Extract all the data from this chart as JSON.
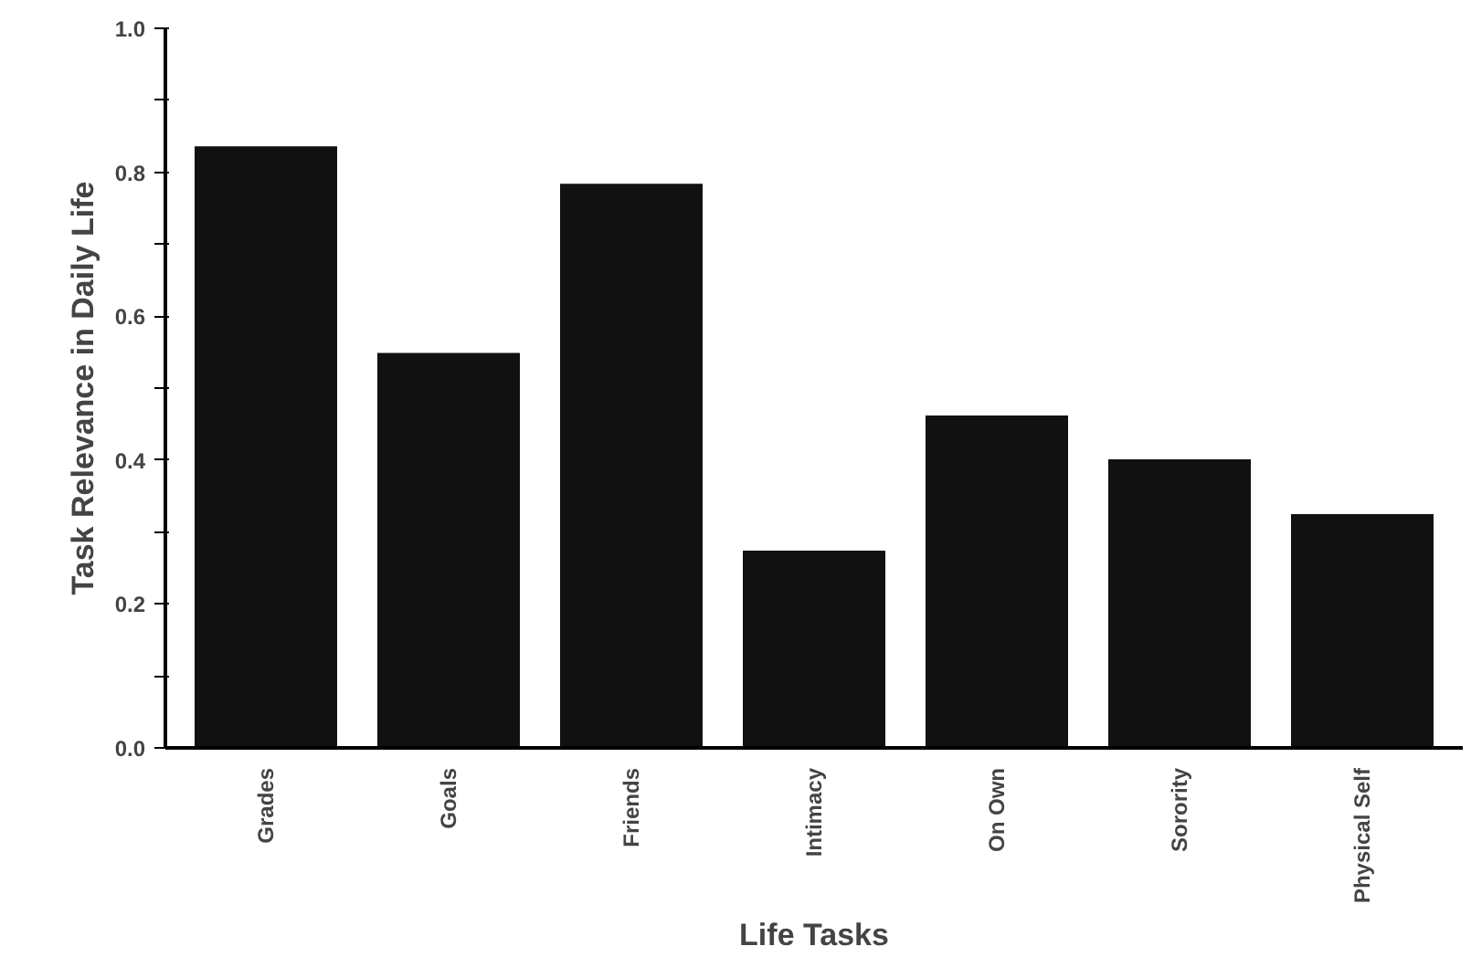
{
  "chart_data": {
    "type": "bar",
    "xlabel": "Life Tasks",
    "ylabel": "Task Relevance in Daily Life",
    "categories": [
      "Grades",
      "Goals",
      "Friends",
      "Intimacy",
      "On Own",
      "Sorority",
      "Physical Self"
    ],
    "values": [
      0.836,
      0.549,
      0.784,
      0.274,
      0.462,
      0.401,
      0.325
    ],
    "color": "#111111",
    "ylim": [
      0,
      1.0
    ],
    "yticks": [
      {
        "value": 0,
        "label": "0.0"
      },
      {
        "value": 0.1,
        "label": null
      },
      {
        "value": 0.2,
        "label": "0.2"
      },
      {
        "value": 0.3,
        "label": null
      },
      {
        "value": 0.4,
        "label": "0.4"
      },
      {
        "value": 0.5,
        "label": null
      },
      {
        "value": 0.6,
        "label": "0.6"
      },
      {
        "value": 0.7,
        "label": null
      },
      {
        "value": 0.8,
        "label": "0.8"
      },
      {
        "value": 0.9,
        "label": null
      },
      {
        "value": 1.0,
        "label": "1.0"
      }
    ],
    "grid": false
  }
}
